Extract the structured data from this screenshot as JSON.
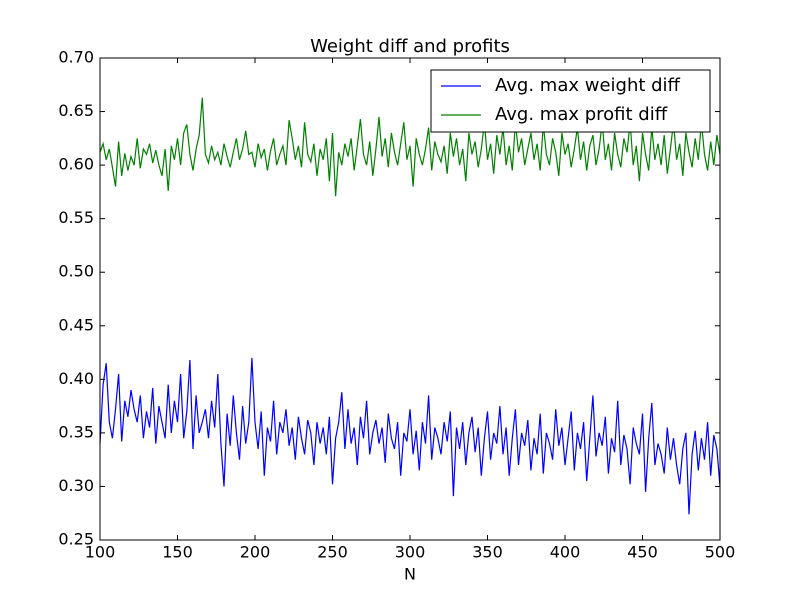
{
  "chart_data": {
    "type": "line",
    "title": "Weight diff and profits",
    "xlabel": "N",
    "xlim": [
      100,
      500
    ],
    "xticks": [
      100,
      150,
      200,
      250,
      300,
      350,
      400,
      450,
      500
    ],
    "ylim": [
      0.25,
      0.7
    ],
    "yticks": [
      0.25,
      {
        "value": 0.3,
        "label": "0.30"
      },
      0.35,
      {
        "value": 0.4,
        "label": "0.40"
      },
      0.45,
      {
        "value": 0.5,
        "label": "0.50"
      },
      0.55,
      {
        "value": 0.6,
        "label": "0.60"
      },
      0.65,
      {
        "value": 0.7,
        "label": "0.70"
      }
    ],
    "legend": "upper right",
    "x": [
      100,
      102,
      104,
      106,
      108,
      110,
      112,
      114,
      116,
      118,
      120,
      122,
      124,
      126,
      128,
      130,
      132,
      134,
      136,
      138,
      140,
      142,
      144,
      146,
      148,
      150,
      152,
      154,
      156,
      158,
      160,
      162,
      164,
      166,
      168,
      170,
      172,
      174,
      176,
      178,
      180,
      182,
      184,
      186,
      188,
      190,
      192,
      194,
      196,
      198,
      200,
      202,
      204,
      206,
      208,
      210,
      212,
      214,
      216,
      218,
      220,
      222,
      224,
      226,
      228,
      230,
      232,
      234,
      236,
      238,
      240,
      242,
      244,
      246,
      248,
      250,
      252,
      254,
      256,
      258,
      260,
      262,
      264,
      266,
      268,
      270,
      272,
      274,
      276,
      278,
      280,
      282,
      284,
      286,
      288,
      290,
      292,
      294,
      296,
      298,
      300,
      302,
      304,
      306,
      308,
      310,
      312,
      314,
      316,
      318,
      320,
      322,
      324,
      326,
      328,
      330,
      332,
      334,
      336,
      338,
      340,
      342,
      344,
      346,
      348,
      350,
      352,
      354,
      356,
      358,
      360,
      362,
      364,
      366,
      368,
      370,
      372,
      374,
      376,
      378,
      380,
      382,
      384,
      386,
      388,
      390,
      392,
      394,
      396,
      398,
      400,
      402,
      404,
      406,
      408,
      410,
      412,
      414,
      416,
      418,
      420,
      422,
      424,
      426,
      428,
      430,
      432,
      434,
      436,
      438,
      440,
      442,
      444,
      446,
      448,
      450,
      452,
      454,
      456,
      458,
      460,
      462,
      464,
      466,
      468,
      470,
      472,
      474,
      476,
      478,
      480,
      482,
      484,
      486,
      488,
      490,
      492,
      494,
      496,
      498,
      500
    ],
    "series": [
      {
        "name": "Avg. max weight diff",
        "color": "#0000ff",
        "values": [
          0.34,
          0.395,
          0.415,
          0.36,
          0.345,
          0.372,
          0.405,
          0.342,
          0.38,
          0.365,
          0.39,
          0.372,
          0.36,
          0.385,
          0.345,
          0.37,
          0.355,
          0.392,
          0.34,
          0.375,
          0.36,
          0.345,
          0.395,
          0.35,
          0.38,
          0.36,
          0.405,
          0.345,
          0.37,
          0.418,
          0.335,
          0.385,
          0.35,
          0.36,
          0.372,
          0.345,
          0.38,
          0.355,
          0.405,
          0.34,
          0.3,
          0.368,
          0.338,
          0.385,
          0.35,
          0.325,
          0.375,
          0.34,
          0.36,
          0.42,
          0.36,
          0.335,
          0.37,
          0.31,
          0.355,
          0.342,
          0.38,
          0.33,
          0.36,
          0.35,
          0.372,
          0.338,
          0.355,
          0.325,
          0.365,
          0.345,
          0.33,
          0.362,
          0.35,
          0.32,
          0.36,
          0.34,
          0.355,
          0.33,
          0.365,
          0.302,
          0.345,
          0.36,
          0.388,
          0.335,
          0.372,
          0.34,
          0.355,
          0.32,
          0.365,
          0.345,
          0.38,
          0.33,
          0.35,
          0.362,
          0.34,
          0.355,
          0.322,
          0.368,
          0.345,
          0.335,
          0.36,
          0.31,
          0.35,
          0.342,
          0.372,
          0.33,
          0.352,
          0.315,
          0.36,
          0.34,
          0.385,
          0.325,
          0.355,
          0.345,
          0.33,
          0.36,
          0.342,
          0.37,
          0.291,
          0.355,
          0.335,
          0.36,
          0.32,
          0.35,
          0.365,
          0.332,
          0.355,
          0.31,
          0.345,
          0.37,
          0.325,
          0.35,
          0.34,
          0.375,
          0.33,
          0.355,
          0.31,
          0.345,
          0.372,
          0.32,
          0.35,
          0.338,
          0.362,
          0.315,
          0.345,
          0.33,
          0.368,
          0.312,
          0.35,
          0.34,
          0.325,
          0.372,
          0.338,
          0.355,
          0.32,
          0.345,
          0.37,
          0.315,
          0.35,
          0.335,
          0.36,
          0.305,
          0.345,
          0.385,
          0.328,
          0.35,
          0.338,
          0.365,
          0.312,
          0.345,
          0.332,
          0.38,
          0.32,
          0.348,
          0.335,
          0.302,
          0.355,
          0.34,
          0.33,
          0.368,
          0.295,
          0.345,
          0.378,
          0.32,
          0.34,
          0.33,
          0.312,
          0.355,
          0.325,
          0.345,
          0.32,
          0.302,
          0.335,
          0.35,
          0.274,
          0.33,
          0.352,
          0.315,
          0.345,
          0.325,
          0.36,
          0.31,
          0.348,
          0.335,
          0.3
        ]
      },
      {
        "name": "Avg. max profit diff",
        "color": "#008000",
        "values": [
          0.612,
          0.62,
          0.605,
          0.615,
          0.598,
          0.58,
          0.622,
          0.59,
          0.611,
          0.595,
          0.608,
          0.6,
          0.625,
          0.597,
          0.615,
          0.61,
          0.62,
          0.602,
          0.614,
          0.6,
          0.59,
          0.615,
          0.576,
          0.618,
          0.605,
          0.625,
          0.6,
          0.63,
          0.638,
          0.61,
          0.595,
          0.615,
          0.628,
          0.663,
          0.61,
          0.602,
          0.618,
          0.605,
          0.612,
          0.6,
          0.62,
          0.608,
          0.598,
          0.612,
          0.625,
          0.605,
          0.615,
          0.632,
          0.61,
          0.612,
          0.598,
          0.62,
          0.607,
          0.615,
          0.595,
          0.613,
          0.625,
          0.6,
          0.61,
          0.618,
          0.6,
          0.642,
          0.625,
          0.605,
          0.618,
          0.598,
          0.64,
          0.61,
          0.603,
          0.62,
          0.59,
          0.615,
          0.605,
          0.625,
          0.585,
          0.63,
          0.571,
          0.612,
          0.6,
          0.62,
          0.608,
          0.625,
          0.595,
          0.618,
          0.643,
          0.61,
          0.6,
          0.622,
          0.59,
          0.615,
          0.645,
          0.608,
          0.625,
          0.598,
          0.63,
          0.612,
          0.6,
          0.62,
          0.64,
          0.605,
          0.618,
          0.58,
          0.625,
          0.61,
          0.6,
          0.615,
          0.635,
          0.595,
          0.622,
          0.61,
          0.603,
          0.618,
          0.592,
          0.63,
          0.608,
          0.625,
          0.6,
          0.615,
          0.585,
          0.63,
          0.61,
          0.622,
          0.598,
          0.615,
          0.64,
          0.605,
          0.62,
          0.592,
          0.628,
          0.61,
          0.635,
          0.6,
          0.618,
          0.595,
          0.64,
          0.612,
          0.625,
          0.6,
          0.615,
          0.63,
          0.605,
          0.62,
          0.595,
          0.638,
          0.61,
          0.6,
          0.625,
          0.612,
          0.59,
          0.63,
          0.61,
          0.62,
          0.598,
          0.615,
          0.635,
          0.605,
          0.622,
          0.595,
          0.618,
          0.628,
          0.6,
          0.615,
          0.64,
          0.605,
          0.62,
          0.595,
          0.63,
          0.61,
          0.598,
          0.625,
          0.612,
          0.64,
          0.6,
          0.618,
          0.585,
          0.63,
          0.61,
          0.595,
          0.635,
          0.605,
          0.62,
          0.6,
          0.628,
          0.592,
          0.615,
          0.64,
          0.605,
          0.62,
          0.59,
          0.63,
          0.612,
          0.598,
          0.625,
          0.605,
          0.64,
          0.61,
          0.595,
          0.622,
          0.6,
          0.628,
          0.61
        ]
      }
    ]
  }
}
